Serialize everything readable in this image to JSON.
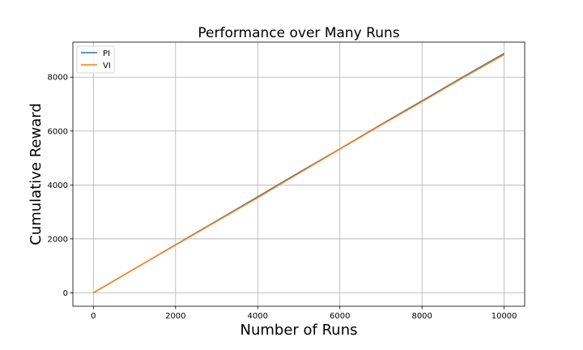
{
  "chart_data": {
    "type": "line",
    "title": "Performance over Many Runs",
    "xlabel": "Number of Runs",
    "ylabel": "Cumulative Reward",
    "xlim": [
      -500,
      10500
    ],
    "ylim": [
      -500,
      9300
    ],
    "xticks": [
      0,
      2000,
      4000,
      6000,
      8000,
      10000
    ],
    "yticks": [
      0,
      2000,
      4000,
      6000,
      8000
    ],
    "grid": true,
    "legend_position": "top-left",
    "series": [
      {
        "name": "PI",
        "color": "#1f77b4",
        "x": [
          0,
          1000,
          2000,
          3000,
          4000,
          5000,
          6000,
          7000,
          8000,
          9000,
          10000
        ],
        "y": [
          0,
          890,
          1780,
          2670,
          3560,
          4460,
          5340,
          6240,
          7120,
          8010,
          8880
        ]
      },
      {
        "name": "VI",
        "color": "#ff7f0e",
        "x": [
          0,
          1000,
          2000,
          3000,
          4000,
          5000,
          6000,
          7000,
          8000,
          9000,
          10000
        ],
        "y": [
          0,
          890,
          1770,
          2650,
          3530,
          4430,
          5330,
          6220,
          7090,
          7980,
          8840
        ]
      }
    ]
  }
}
